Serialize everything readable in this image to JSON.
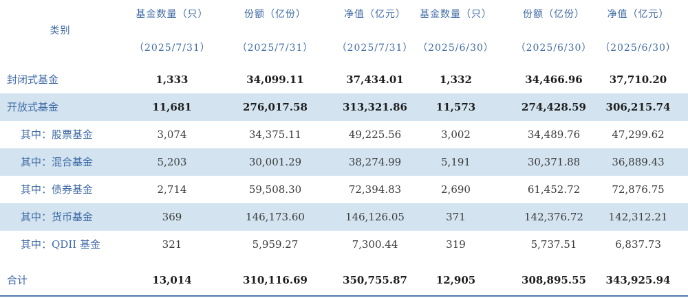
{
  "header": {
    "category": "类别",
    "columns": [
      {
        "title": "基金数量（只）",
        "date": "（2025/7/31）"
      },
      {
        "title": "份额（亿份）",
        "date": "（2025/7/31）"
      },
      {
        "title": "净值（亿元）",
        "date": "（2025/7/31）"
      },
      {
        "title": "基金数量（只）",
        "date": "（2025/6/30）"
      },
      {
        "title": "份额（亿份）",
        "date": "（2025/6/30）"
      },
      {
        "title": "净值（亿元）",
        "date": "（2025/6/30）"
      }
    ]
  },
  "rows": [
    {
      "label": "封闭式基金",
      "values": [
        "1,333",
        "34,099.11",
        "37,434.01",
        "1,332",
        "34,466.96",
        "37,710.20"
      ]
    },
    {
      "label": "开放式基金",
      "values": [
        "11,681",
        "276,017.58",
        "313,321.86",
        "11,573",
        "274,428.59",
        "306,215.74"
      ]
    },
    {
      "label": "其中：股票基金",
      "values": [
        "3,074",
        "34,375.11",
        "49,225.56",
        "3,002",
        "34,489.76",
        "47,299.62"
      ]
    },
    {
      "label": "其中：混合基金",
      "values": [
        "5,203",
        "30,001.29",
        "38,274.99",
        "5,191",
        "30,371.88",
        "36,889.43"
      ]
    },
    {
      "label": "其中：债券基金",
      "values": [
        "2,714",
        "59,508.30",
        "72,394.83",
        "2,690",
        "61,452.72",
        "72,876.75"
      ]
    },
    {
      "label": "其中：货币基金",
      "values": [
        "369",
        "146,173.60",
        "146,126.05",
        "371",
        "142,376.72",
        "142,312.21"
      ]
    },
    {
      "label": "其中：QDII 基金",
      "values": [
        "321",
        "5,959.27",
        "7,300.44",
        "319",
        "5,737.51",
        "6,837.73"
      ]
    },
    {
      "label": "合计",
      "values": [
        "13,014",
        "310,116.69",
        "350,755.87",
        "12,905",
        "308,895.55",
        "343,925.94"
      ]
    }
  ]
}
